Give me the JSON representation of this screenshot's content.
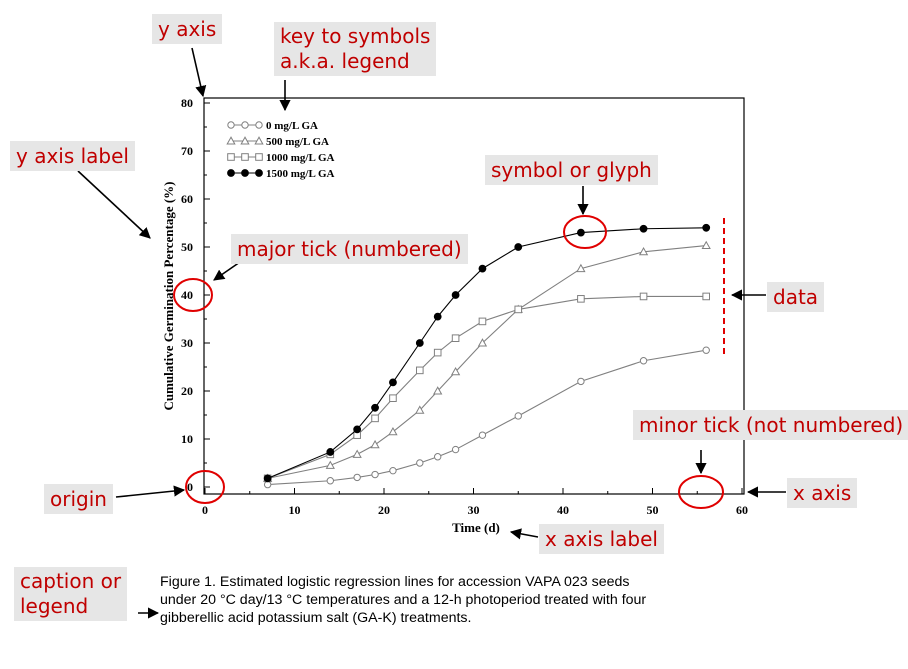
{
  "chart_data": {
    "type": "line",
    "xlabel": "Time (d)",
    "ylabel": "Cumulative Germination Percentage (%)",
    "xlim": [
      0,
      60
    ],
    "ylim": [
      0,
      80
    ],
    "xticks": [
      0,
      10,
      20,
      30,
      40,
      50,
      60
    ],
    "yticks": [
      0,
      10,
      20,
      30,
      40,
      50,
      60,
      70,
      80
    ],
    "grid": false,
    "legend_position": "top-left",
    "series": [
      {
        "name": "0 mg/L GA",
        "marker": "circle-open",
        "x": [
          7,
          14,
          17,
          19,
          21,
          24,
          26,
          28,
          31,
          35,
          42,
          49,
          56
        ],
        "y": [
          0.5,
          1.3,
          2.0,
          2.6,
          3.4,
          5.0,
          6.3,
          7.8,
          10.8,
          14.8,
          22.0,
          26.3,
          28.5
        ]
      },
      {
        "name": "500 mg/L GA",
        "marker": "triangle-open",
        "x": [
          7,
          14,
          17,
          19,
          21,
          24,
          26,
          28,
          31,
          35,
          42,
          49,
          56
        ],
        "y": [
          1.8,
          4.5,
          6.8,
          8.8,
          11.5,
          16.0,
          20.0,
          24.0,
          30.0,
          37.0,
          45.5,
          49.0,
          50.3
        ]
      },
      {
        "name": "1000 mg/L GA",
        "marker": "square-open",
        "x": [
          7,
          14,
          17,
          19,
          21,
          24,
          26,
          28,
          31,
          35,
          42,
          49,
          56
        ],
        "y": [
          1.8,
          6.8,
          10.8,
          14.3,
          18.5,
          24.3,
          28.0,
          31.0,
          34.5,
          37.0,
          39.2,
          39.7,
          39.7
        ]
      },
      {
        "name": "1500 mg/L GA",
        "marker": "circle-filled",
        "x": [
          7,
          14,
          17,
          19,
          21,
          24,
          26,
          28,
          31,
          35,
          42,
          49,
          56
        ],
        "y": [
          1.8,
          7.3,
          12.0,
          16.5,
          21.8,
          30.0,
          35.5,
          40.0,
          45.5,
          50.0,
          53.0,
          53.8,
          54.0
        ]
      }
    ]
  },
  "annotations": {
    "y_axis": "y axis",
    "legend_line1": "key to symbols",
    "legend_line2": "a.k.a. legend",
    "y_axis_label": "y axis label",
    "symbol": "symbol or glyph",
    "major_tick": "major tick (numbered)",
    "data": "data",
    "minor_tick": "minor tick (not numbered)",
    "origin": "origin",
    "x_axis": "x axis",
    "x_axis_label": "x axis label",
    "caption_line1": "caption or",
    "caption_line2": "legend"
  },
  "caption": {
    "line1": "Figure 1. Estimated logistic regression lines for accession VAPA 023 seeds",
    "line2": "under 20 °C day/13 °C temperatures and a 12-h photoperiod treated with four",
    "line3": "gibberellic acid potassium salt (GA-K) treatments."
  },
  "colors": {
    "annotation_text": "#c00000",
    "annotation_bg": "#e6e6e6",
    "open_series": "#808080",
    "filled_series": "#000000"
  }
}
